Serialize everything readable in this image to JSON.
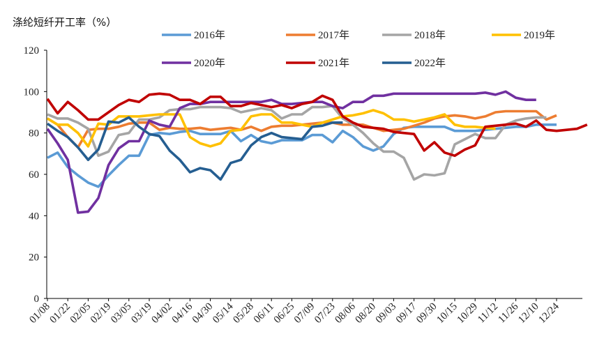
{
  "chart_data": {
    "type": "line",
    "title": "涤纶短纤开工率（%）",
    "xlabel": "",
    "ylabel": "",
    "ylim": [
      0,
      120
    ],
    "yticks": [
      0,
      20,
      40,
      60,
      80,
      100,
      120
    ],
    "grid": false,
    "legend_position": "top",
    "x_tick_labels": [
      "01/08",
      "01/22",
      "02/05",
      "02/19",
      "03/05",
      "03/19",
      "04/02",
      "04/16",
      "04/30",
      "05/14",
      "05/28",
      "06/11",
      "06/25",
      "07/09",
      "07/23",
      "08/06",
      "08/20",
      "09/03",
      "09/17",
      "09/30",
      "10/15",
      "10/29",
      "11/12",
      "11/26",
      "12/10",
      "12/24"
    ],
    "x_note": "weekly points, one tick label every 2 weeks",
    "series": [
      {
        "name": "2016年",
        "color": "#5B9BD5",
        "values": [
          68,
          70.5,
          63.5,
          59.5,
          56,
          54,
          59.5,
          64.5,
          69,
          69,
          79,
          80,
          79.5,
          80.5,
          81,
          79.5,
          79.5,
          79.5,
          81,
          76,
          79,
          76,
          75,
          76.5,
          76.5,
          76.5,
          79,
          79,
          75.5,
          81,
          78,
          73.5,
          71.5,
          73.5,
          79.5,
          82.5,
          83,
          83,
          83,
          83,
          81,
          81,
          81,
          81.5,
          82,
          82.5,
          83,
          83,
          84,
          84,
          84
        ]
      },
      {
        "name": "2017年",
        "color": "#ED7D31",
        "values": [
          87,
          84,
          78,
          73,
          81.5,
          82,
          82,
          83,
          84.5,
          85,
          85,
          81.5,
          82.5,
          82,
          82,
          82.5,
          81.5,
          82,
          82.5,
          81.5,
          83,
          81,
          83,
          83.5,
          83.5,
          84,
          84.5,
          85,
          85,
          84,
          84,
          84,
          82.5,
          81,
          81.5,
          82,
          83.5,
          85,
          87,
          88,
          88.5,
          88,
          87,
          88,
          90,
          90.5,
          90.5,
          90.5,
          90.5,
          86.5,
          88.5
        ]
      },
      {
        "name": "2018年",
        "color": "#A5A5A5",
        "values": [
          89,
          87,
          87,
          85,
          82,
          69,
          71,
          79,
          80,
          86.5,
          86.5,
          87.5,
          91,
          91.5,
          91.5,
          92.5,
          92.5,
          92.5,
          92,
          90,
          91,
          92,
          91,
          87,
          89,
          89,
          92.5,
          92.5,
          93,
          87,
          84,
          80,
          75,
          71,
          71,
          68,
          57.5,
          60,
          59.5,
          60.5,
          74.5,
          77,
          79.5,
          77.5,
          77.5,
          84,
          86,
          87,
          87.5,
          87.5
        ]
      },
      {
        "name": "2019年",
        "color": "#FFC000",
        "values": [
          87,
          84,
          84,
          80,
          73.5,
          84.5,
          84,
          88,
          88,
          88,
          88.5,
          89,
          89,
          89,
          78,
          75,
          73.5,
          75,
          81,
          81.5,
          88,
          89,
          89,
          85,
          85,
          84,
          83,
          85,
          86.5,
          88,
          88.5,
          89.5,
          91,
          89.5,
          86.5,
          86.5,
          85.5,
          86.5,
          87.5,
          89,
          84,
          83,
          83,
          82.5,
          82
        ]
      },
      {
        "name": "2020年",
        "color": "#7030A0",
        "values": [
          82,
          75,
          67,
          41.5,
          42,
          48.5,
          64.5,
          72.5,
          76,
          76,
          86,
          84,
          83,
          92,
          94,
          94,
          95,
          95,
          95,
          95,
          95,
          95,
          96,
          94,
          94,
          94.5,
          95,
          95,
          93,
          92,
          95,
          95,
          98,
          98,
          99,
          99,
          99,
          99,
          99,
          99,
          99,
          99,
          99,
          99.5,
          98.5,
          100,
          97,
          96,
          96
        ]
      },
      {
        "name": "2021年",
        "color": "#C00000",
        "values": [
          96.5,
          89.5,
          95,
          91,
          86.5,
          86.5,
          90,
          93.5,
          96,
          95,
          98.5,
          99,
          98.5,
          96,
          96,
          94,
          97.5,
          97.5,
          93,
          93,
          94.5,
          93.5,
          92.5,
          93.5,
          92,
          94,
          95,
          98,
          96,
          88,
          85,
          83,
          82.5,
          82,
          80.5,
          80,
          79.5,
          71.5,
          75.5,
          70.5,
          69,
          72,
          74,
          83,
          83.5,
          84,
          84.5,
          83,
          86,
          81.5,
          81,
          81.5,
          82,
          84
        ]
      },
      {
        "name": "2022年",
        "color": "#255E91",
        "values": [
          84.5,
          81,
          78,
          73,
          67,
          72,
          85.5,
          85,
          87.5,
          83,
          79.5,
          78.5,
          71.5,
          67,
          61,
          63,
          62,
          57.5,
          65.5,
          67,
          74,
          78,
          80,
          78,
          77.5,
          77,
          83,
          83.5,
          85,
          85
        ]
      }
    ]
  }
}
